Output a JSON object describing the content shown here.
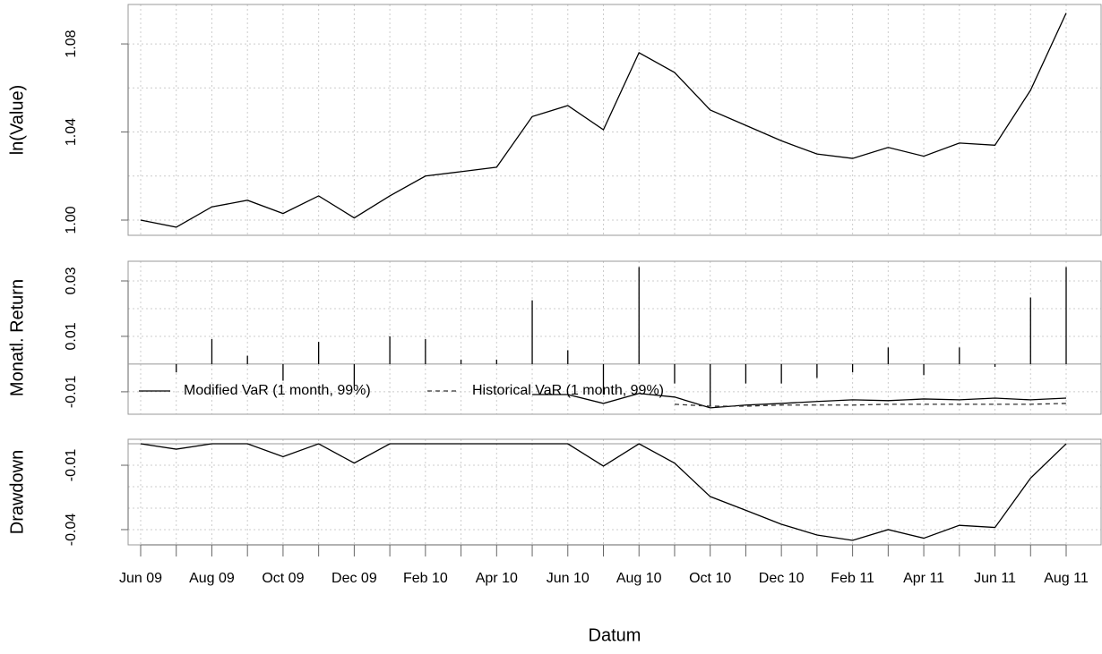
{
  "chart_data": [
    {
      "type": "line",
      "ylabel": "ln(Value)",
      "color": "#000000",
      "values": [
        1.0,
        0.9968,
        1.006,
        1.009,
        1.003,
        1.011,
        1.001,
        1.011,
        1.02,
        1.022,
        1.024,
        1.047,
        1.052,
        1.041,
        1.076,
        1.067,
        1.05,
        1.043,
        1.036,
        1.03,
        1.028,
        1.033,
        1.029,
        1.035,
        1.034,
        1.059,
        1.094
      ],
      "ylim": [
        0.9931,
        1.0979
      ],
      "yticks": [
        {
          "value": 1,
          "label": "1.00"
        },
        1.04,
        1.08
      ],
      "ygrid": [
        1,
        1.02,
        1.04,
        1.06,
        1.08
      ],
      "grid": true
    },
    {
      "type": "bar",
      "ylabel": "Monatl. Return",
      "color": "#000000",
      "values": [
        null,
        -0.003,
        0.009,
        0.003,
        -0.006,
        0.008,
        -0.008,
        0.01,
        0.009,
        0.0016,
        0.0016,
        0.023,
        0.005,
        -0.011,
        0.035,
        -0.007,
        -0.015,
        -0.007,
        -0.007,
        -0.005,
        -0.003,
        0.006,
        -0.004,
        0.006,
        -0.001,
        0.024,
        0.035
      ],
      "series": [
        {
          "name": "Modified VaR (1 month, 99%)",
          "color": "#000000",
          "dash": false,
          "values": [
            null,
            null,
            null,
            null,
            null,
            null,
            null,
            null,
            null,
            null,
            null,
            -0.011,
            -0.011,
            -0.0142,
            -0.0106,
            -0.0119,
            -0.0158,
            -0.0148,
            -0.0142,
            -0.0135,
            -0.0129,
            -0.0132,
            -0.0126,
            -0.0129,
            -0.0123,
            -0.0129,
            -0.0123
          ]
        },
        {
          "name": "Historical VaR (1 month, 99%)",
          "color": "#333333",
          "dash": true,
          "values": [
            null,
            null,
            null,
            null,
            null,
            null,
            null,
            null,
            null,
            null,
            null,
            null,
            null,
            null,
            null,
            -0.0145,
            -0.0152,
            -0.0152,
            -0.0148,
            -0.0148,
            -0.0148,
            -0.0145,
            -0.0145,
            -0.0145,
            -0.0145,
            -0.0145,
            -0.0142
          ]
        }
      ],
      "legend": "bottomleft",
      "ylim": [
        -0.0181,
        0.0371
      ],
      "yticks": [
        0.03,
        0.01,
        -0.01
      ],
      "ygrid": [
        0.03,
        0.02,
        0.01,
        -0.01
      ],
      "grid": true
    },
    {
      "type": "line",
      "ylabel": "Drawdown",
      "xlabel": "Datum",
      "color": "#000000",
      "categories": [
        "Jun 09",
        null,
        "Aug 09",
        null,
        "Oct 09",
        null,
        "Dec 09",
        null,
        "Feb 10",
        null,
        "Apr 10",
        null,
        "Jun 10",
        null,
        "Aug 10",
        null,
        "Oct 10",
        null,
        "Dec 10",
        null,
        "Feb 11",
        null,
        "Apr 11",
        null,
        "Jun 11",
        null,
        "Aug 11"
      ],
      "values": [
        0,
        -0.0025,
        0,
        0,
        -0.006,
        0,
        -0.009,
        0,
        0,
        0,
        0,
        0,
        0,
        -0.0104,
        0,
        -0.009,
        -0.0246,
        -0.031,
        -0.0375,
        -0.0425,
        -0.045,
        -0.04,
        -0.044,
        -0.038,
        -0.039,
        -0.016,
        0
      ],
      "ylim": [
        -0.0471,
        0.0021
      ],
      "yticks": [
        -0.01,
        -0.04
      ],
      "ygrid": [
        -0.01,
        -0.02,
        -0.03,
        -0.04
      ],
      "grid": true
    }
  ]
}
